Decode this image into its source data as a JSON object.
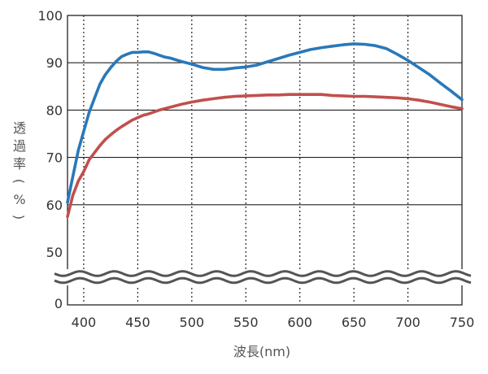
{
  "chart_data": {
    "type": "line",
    "xlabel": "波長(nm)",
    "ylabel_chars": [
      "透",
      "過",
      "率",
      "(",
      "%",
      ")"
    ],
    "x_ticks": [
      400,
      450,
      500,
      550,
      600,
      650,
      700,
      750
    ],
    "y_ticks": [
      0,
      50,
      60,
      70,
      80,
      90,
      100
    ],
    "xlim": [
      385,
      750
    ],
    "ylim": [
      50,
      100
    ],
    "y_axis_break": "between 0 and 50",
    "grid": {
      "x": "dotted",
      "y": "solid"
    },
    "series": [
      {
        "color": "#2a78b8",
        "x": [
          385,
          390,
          395,
          400,
          405,
          410,
          415,
          420,
          425,
          430,
          435,
          440,
          445,
          450,
          455,
          460,
          465,
          470,
          475,
          480,
          490,
          500,
          510,
          520,
          530,
          540,
          550,
          560,
          570,
          580,
          590,
          600,
          610,
          620,
          630,
          640,
          650,
          660,
          670,
          680,
          690,
          700,
          710,
          720,
          730,
          740,
          750
        ],
        "y": [
          60.5,
          66,
          71.5,
          75.5,
          79.5,
          82.5,
          85.5,
          87.5,
          89,
          90.3,
          91.3,
          91.8,
          92.2,
          92.2,
          92.3,
          92.3,
          92,
          91.6,
          91.2,
          91,
          90.3,
          89.7,
          89,
          88.6,
          88.6,
          88.9,
          89.1,
          89.5,
          90.2,
          90.9,
          91.6,
          92.2,
          92.8,
          93.2,
          93.5,
          93.8,
          94,
          93.9,
          93.6,
          93,
          91.8,
          90.5,
          89,
          87.5,
          85.7,
          84,
          82.2
        ]
      },
      {
        "color": "#c0504d",
        "x": [
          385,
          390,
          395,
          400,
          405,
          410,
          415,
          420,
          425,
          430,
          435,
          440,
          445,
          450,
          455,
          460,
          465,
          470,
          480,
          490,
          500,
          510,
          520,
          530,
          540,
          550,
          560,
          570,
          580,
          590,
          600,
          610,
          620,
          630,
          640,
          650,
          660,
          670,
          680,
          690,
          700,
          710,
          720,
          730,
          740,
          750
        ],
        "y": [
          57.5,
          62,
          65,
          67,
          69.5,
          71,
          72.5,
          73.8,
          74.8,
          75.7,
          76.5,
          77.2,
          77.9,
          78.4,
          78.9,
          79.2,
          79.6,
          80,
          80.6,
          81.2,
          81.7,
          82.1,
          82.4,
          82.7,
          82.9,
          83,
          83.1,
          83.2,
          83.2,
          83.3,
          83.3,
          83.3,
          83.3,
          83.1,
          83,
          82.9,
          82.9,
          82.8,
          82.7,
          82.6,
          82.4,
          82.1,
          81.7,
          81.2,
          80.7,
          80.3
        ]
      }
    ]
  }
}
